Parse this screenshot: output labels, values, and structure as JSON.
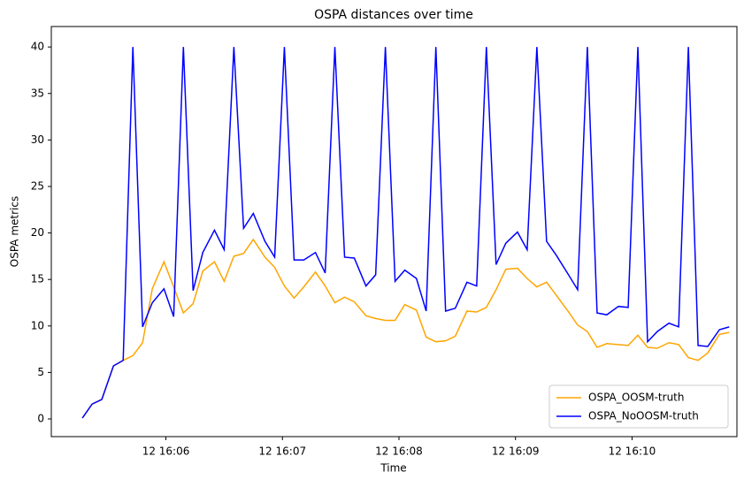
{
  "chart_data": {
    "type": "line",
    "title": "OSPA distances over time",
    "x_label": "Time",
    "y_label": "OSPA metrics",
    "x": [
      "16:05:17",
      "16:05:22",
      "16:05:27",
      "16:05:33",
      "16:05:38",
      "16:05:43",
      "16:05:48",
      "16:05:53",
      "16:05:59",
      "16:06:04",
      "16:06:09",
      "16:06:14",
      "16:06:19",
      "16:06:25",
      "16:06:30",
      "16:06:35",
      "16:06:40",
      "16:06:45",
      "16:06:51",
      "16:06:56",
      "16:07:01",
      "16:07:06",
      "16:07:11",
      "16:07:17",
      "16:07:22",
      "16:07:27",
      "16:07:32",
      "16:07:37",
      "16:07:43",
      "16:07:48",
      "16:07:53",
      "16:07:58",
      "16:08:03",
      "16:08:09",
      "16:08:14",
      "16:08:19",
      "16:08:24",
      "16:08:29",
      "16:08:35",
      "16:08:40",
      "16:08:45",
      "16:08:50",
      "16:08:55",
      "16:09:01",
      "16:09:06",
      "16:09:11",
      "16:09:16",
      "16:09:21",
      "16:09:27",
      "16:09:32",
      "16:09:37",
      "16:09:42",
      "16:09:47",
      "16:09:53",
      "16:09:58",
      "16:10:03",
      "16:10:08",
      "16:10:13",
      "16:10:19",
      "16:10:24",
      "16:10:29",
      "16:10:34",
      "16:10:39",
      "16:10:45",
      "16:10:50"
    ],
    "series": [
      {
        "name": "OSPA_OOSM-truth",
        "color": "#ffa500",
        "values": [
          0.1,
          1.6,
          2.1,
          5.7,
          6.3,
          6.8,
          8.2,
          14.0,
          16.9,
          14.2,
          11.4,
          12.4,
          15.9,
          16.9,
          14.8,
          17.5,
          17.8,
          19.3,
          17.4,
          16.3,
          14.3,
          13.0,
          14.2,
          15.8,
          14.3,
          12.5,
          13.1,
          12.6,
          11.1,
          10.8,
          10.6,
          10.6,
          12.3,
          11.7,
          8.8,
          8.3,
          8.4,
          8.9,
          11.6,
          11.5,
          12.0,
          13.9,
          16.1,
          16.2,
          15.1,
          14.2,
          14.7,
          13.3,
          11.6,
          10.1,
          9.4,
          7.7,
          8.1,
          8.0,
          7.9,
          9.0,
          7.7,
          7.6,
          8.2,
          8.0,
          6.6,
          6.3,
          7.1,
          9.1,
          9.3
        ]
      },
      {
        "name": "OSPA_NoOOSM-truth",
        "color": "#0000ff",
        "values": [
          0.1,
          1.6,
          2.1,
          5.7,
          6.3,
          40,
          9.9,
          12.5,
          14.0,
          11.0,
          40,
          13.8,
          17.9,
          20.3,
          18.2,
          40,
          20.5,
          22.1,
          19.1,
          17.4,
          40,
          17.1,
          17.1,
          17.9,
          15.7,
          40,
          17.4,
          17.3,
          14.3,
          15.5,
          40,
          14.8,
          16.0,
          15.1,
          11.6,
          40,
          11.6,
          11.9,
          14.7,
          14.3,
          40,
          16.6,
          18.9,
          20.1,
          18.2,
          40,
          19.1,
          17.6,
          15.6,
          13.9,
          40,
          11.4,
          11.2,
          12.1,
          12.0,
          40,
          8.3,
          9.4,
          10.3,
          9.9,
          40,
          7.9,
          7.8,
          9.6,
          9.9
        ]
      }
    ],
    "xlim": [
      "16:05:01",
      "16:10:54"
    ],
    "xticks": [
      {
        "value": "16:06:00",
        "label": "12 16:06"
      },
      {
        "value": "16:07:00",
        "label": "12 16:07"
      },
      {
        "value": "16:08:00",
        "label": "12 16:08"
      },
      {
        "value": "16:09:00",
        "label": "12 16:09"
      },
      {
        "value": "16:10:00",
        "label": "12 16:10"
      }
    ],
    "ylim": [
      -1.9,
      42.2
    ],
    "yticks": [
      0,
      5,
      10,
      15,
      20,
      25,
      30,
      35,
      40
    ],
    "grid": false,
    "legend": "lower right"
  }
}
